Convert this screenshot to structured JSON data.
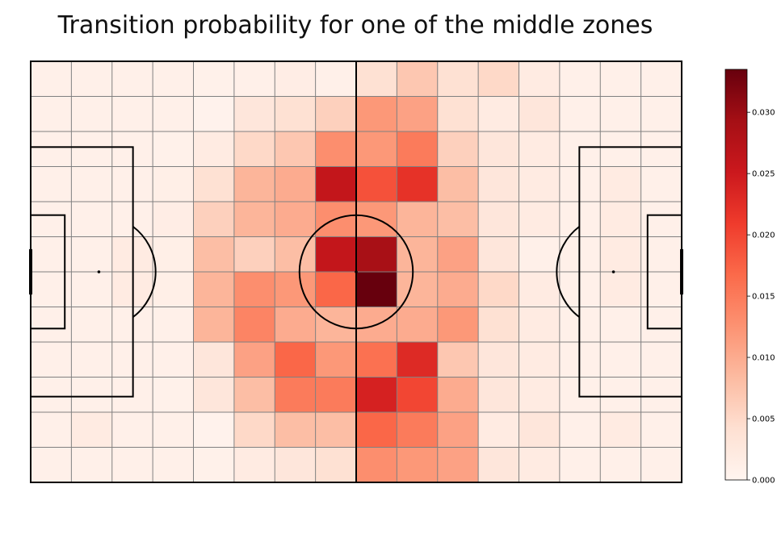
{
  "chart_data": {
    "type": "heatmap",
    "title": "Transition probability for one of the middle zones",
    "xlabel": "",
    "ylabel": "",
    "grid": true,
    "colormap": "Reds",
    "colorbar": {
      "min": 0.0,
      "max": 0.0335,
      "ticks": [
        0.0,
        0.005,
        0.01,
        0.015,
        0.02,
        0.025,
        0.03
      ],
      "tick_labels": [
        "0.000",
        "0.005",
        "0.010",
        "0.015",
        "0.020",
        "0.025",
        "0.030"
      ]
    },
    "n_cols": 16,
    "n_rows": 12,
    "values": [
      [
        0.001,
        0.001,
        0.001,
        0.001,
        0.0008,
        0.001,
        0.0015,
        0.001,
        0.004,
        0.007,
        0.004,
        0.005,
        0.002,
        0.001,
        0.001,
        0.001
      ],
      [
        0.001,
        0.001,
        0.001,
        0.001,
        0.0005,
        0.003,
        0.004,
        0.006,
        0.012,
        0.011,
        0.004,
        0.002,
        0.003,
        0.001,
        0.001,
        0.001
      ],
      [
        0.001,
        0.001,
        0.001,
        0.0008,
        0.002,
        0.005,
        0.007,
        0.013,
        0.012,
        0.015,
        0.006,
        0.003,
        0.002,
        0.001,
        0.001,
        0.001
      ],
      [
        0.001,
        0.001,
        0.001,
        0.0012,
        0.004,
        0.009,
        0.01,
        0.026,
        0.019,
        0.022,
        0.008,
        0.003,
        0.002,
        0.001,
        0.002,
        0.001
      ],
      [
        0.001,
        0.001,
        0.001,
        0.0015,
        0.006,
        0.009,
        0.01,
        0.013,
        0.012,
        0.009,
        0.008,
        0.003,
        0.002,
        0.001,
        0.002,
        0.001
      ],
      [
        0.001,
        0.001,
        0.002,
        0.0012,
        0.008,
        0.006,
        0.008,
        0.026,
        0.029,
        0.009,
        0.011,
        0.003,
        0.001,
        0.001,
        0.002,
        0.001
      ],
      [
        0.001,
        0.001,
        0.002,
        0.0012,
        0.009,
        0.013,
        0.012,
        0.017,
        0.0335,
        0.009,
        0.01,
        0.005,
        0.002,
        0.001,
        0.002,
        0.001
      ],
      [
        0.001,
        0.001,
        0.001,
        0.001,
        0.009,
        0.014,
        0.01,
        0.009,
        0.01,
        0.01,
        0.012,
        0.004,
        0.002,
        0.001,
        0.001,
        0.001
      ],
      [
        0.001,
        0.001,
        0.001,
        0.001,
        0.003,
        0.011,
        0.017,
        0.012,
        0.016,
        0.023,
        0.007,
        0.003,
        0.002,
        0.001,
        0.001,
        0.001
      ],
      [
        0.001,
        0.001,
        0.001,
        0.0008,
        0.003,
        0.008,
        0.015,
        0.015,
        0.024,
        0.02,
        0.01,
        0.003,
        0.002,
        0.001,
        0.001,
        0.001
      ],
      [
        0.001,
        0.002,
        0.001,
        0.001,
        0.0005,
        0.005,
        0.008,
        0.008,
        0.017,
        0.015,
        0.011,
        0.002,
        0.003,
        0.001,
        0.002,
        0.001
      ],
      [
        0.001,
        0.001,
        0.001,
        0.001,
        0.0008,
        0.002,
        0.003,
        0.004,
        0.013,
        0.012,
        0.011,
        0.003,
        0.002,
        0.001,
        0.001,
        0.001
      ]
    ]
  }
}
